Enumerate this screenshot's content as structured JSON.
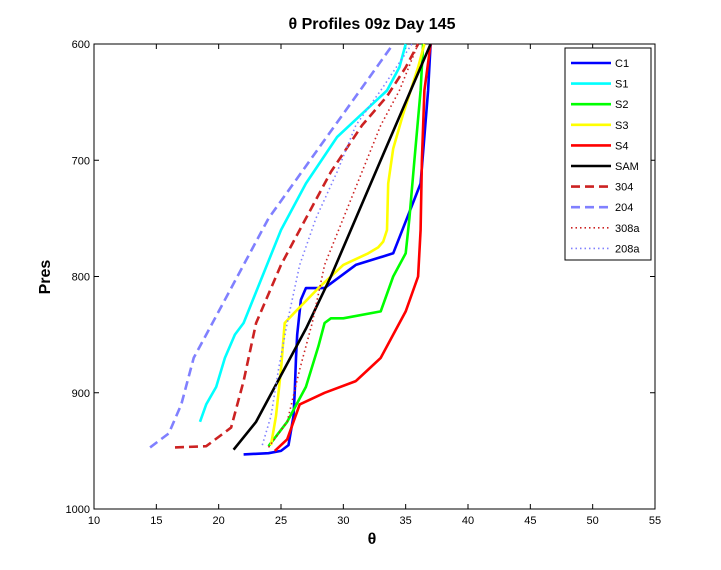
{
  "chart_data": {
    "type": "line",
    "title": "θ Profiles 09z Day 145",
    "xlabel": "θ",
    "ylabel": "Pres",
    "xlim": [
      10,
      55
    ],
    "ylim": [
      1000,
      600
    ],
    "y_reversed": true,
    "x_ticks": [
      10,
      15,
      20,
      25,
      30,
      35,
      40,
      45,
      50,
      55
    ],
    "y_ticks": [
      600,
      700,
      800,
      900,
      1000
    ],
    "grid": false,
    "legend_position": "top-right",
    "series": [
      {
        "name": "C1",
        "color": "#0000ff",
        "style": "solid",
        "x": [
          22,
          24,
          25,
          25.6,
          26,
          26.1,
          26.2,
          26.3,
          26.6,
          27,
          28.5,
          31,
          34,
          36.2,
          36.8,
          37
        ],
        "y": [
          953,
          952,
          950,
          945,
          920,
          900,
          870,
          850,
          820,
          810,
          810,
          790,
          780,
          720,
          640,
          600
        ]
      },
      {
        "name": "S1",
        "color": "#00ffff",
        "style": "solid",
        "x": [
          18.5,
          19,
          19.8,
          20.5,
          21.3,
          22,
          23.5,
          25,
          27,
          29.5,
          31.5,
          33.5,
          34.5,
          35
        ],
        "y": [
          925,
          910,
          895,
          870,
          850,
          840,
          800,
          760,
          720,
          680,
          660,
          640,
          620,
          600
        ]
      },
      {
        "name": "S2",
        "color": "#00ff00",
        "style": "solid",
        "x": [
          24,
          25.5,
          27,
          28,
          28.5,
          29,
          30,
          33,
          34,
          35,
          35.3,
          35.7,
          36.2,
          36.4
        ],
        "y": [
          946,
          925,
          895,
          860,
          840,
          836,
          836,
          830,
          800,
          780,
          750,
          700,
          640,
          600
        ]
      },
      {
        "name": "S3",
        "color": "#ffff00",
        "style": "solid",
        "x": [
          24.2,
          24.6,
          25,
          25.3,
          26,
          28,
          30,
          32,
          32.8,
          33.2,
          33.5,
          33.6,
          34,
          34.8,
          36,
          36.5
        ],
        "y": [
          945,
          920,
          880,
          840,
          832,
          810,
          790,
          780,
          775,
          770,
          760,
          720,
          690,
          660,
          620,
          600
        ]
      },
      {
        "name": "S4",
        "color": "#ff0000",
        "style": "solid",
        "x": [
          24.5,
          25.5,
          26.5,
          28.5,
          31,
          32,
          33,
          34,
          35,
          36,
          36.2,
          36.3,
          36.5,
          37
        ],
        "y": [
          950,
          940,
          910,
          900,
          890,
          880,
          870,
          850,
          830,
          800,
          760,
          700,
          640,
          600
        ]
      },
      {
        "name": "SAM",
        "color": "#000000",
        "style": "solid",
        "x": [
          21.2,
          23,
          25,
          27,
          29,
          31,
          33,
          35,
          37
        ],
        "y": [
          949,
          925,
          885,
          845,
          800,
          750,
          700,
          650,
          600
        ]
      },
      {
        "name": "304",
        "color": "#cc2222",
        "style": "dashed",
        "x": [
          16.5,
          19,
          21,
          22,
          23,
          25,
          27,
          29,
          31.5,
          33.5,
          35,
          36
        ],
        "y": [
          947,
          946,
          930,
          890,
          840,
          790,
          750,
          710,
          670,
          645,
          620,
          600
        ]
      },
      {
        "name": "204",
        "color": "#8080ff",
        "style": "dashed",
        "x": [
          14.5,
          16,
          17,
          18,
          20,
          22,
          24,
          26,
          28,
          30,
          32,
          34
        ],
        "y": [
          947,
          935,
          910,
          870,
          830,
          790,
          750,
          720,
          690,
          660,
          630,
          600
        ]
      },
      {
        "name": "308a",
        "color": "#cc2222",
        "style": "dotted",
        "x": [
          24,
          25.5,
          26.5,
          27.5,
          28.5,
          30,
          31.5,
          33,
          34.5,
          36
        ],
        "y": [
          947,
          925,
          880,
          840,
          790,
          750,
          710,
          670,
          640,
          600
        ]
      },
      {
        "name": "208a",
        "color": "#8080ff",
        "style": "dotted",
        "x": [
          23.5,
          24.2,
          24.8,
          25.5,
          26.5,
          27.8,
          29.5,
          31,
          33,
          35.5
        ],
        "y": [
          945,
          920,
          880,
          840,
          790,
          750,
          710,
          670,
          640,
          600
        ]
      }
    ]
  }
}
